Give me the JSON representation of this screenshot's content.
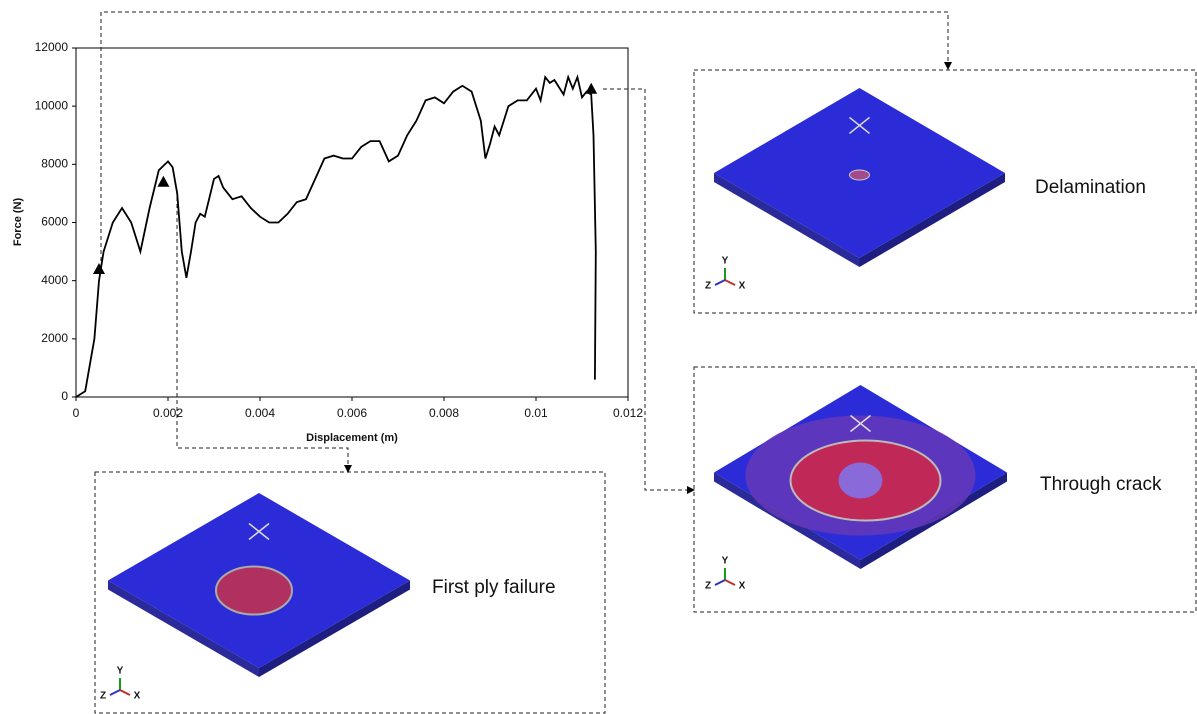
{
  "chart_data": {
    "type": "line",
    "x": [
      0,
      0.0002,
      0.0004,
      0.0005,
      0.0006,
      0.0008,
      0.001,
      0.0012,
      0.0014,
      0.0016,
      0.0018,
      0.002,
      0.0021,
      0.0022,
      0.0023,
      0.0024,
      0.0025,
      0.0026,
      0.0027,
      0.0028,
      0.003,
      0.0031,
      0.0032,
      0.0034,
      0.0036,
      0.0038,
      0.004,
      0.0042,
      0.0044,
      0.0046,
      0.0048,
      0.005,
      0.0052,
      0.0054,
      0.0056,
      0.0058,
      0.006,
      0.0062,
      0.0064,
      0.0066,
      0.0068,
      0.007,
      0.0072,
      0.0074,
      0.0076,
      0.0078,
      0.008,
      0.0082,
      0.0084,
      0.0086,
      0.0088,
      0.0089,
      0.009,
      0.0091,
      0.0092,
      0.0094,
      0.0096,
      0.0098,
      0.01,
      0.0101,
      0.0102,
      0.0103,
      0.0104,
      0.0106,
      0.0107,
      0.0108,
      0.0109,
      0.011,
      0.0111,
      0.0112,
      0.01125,
      0.0113,
      0.01128
    ],
    "series": [
      {
        "color": "#000000",
        "values": [
          0,
          200,
          2000,
          4000,
          5000,
          6000,
          6500,
          6000,
          5000,
          6500,
          7800,
          8100,
          7900,
          7000,
          5000,
          4100,
          5000,
          6000,
          6300,
          6200,
          7500,
          7600,
          7200,
          6800,
          6900,
          6500,
          6200,
          6000,
          6000,
          6300,
          6700,
          6800,
          7500,
          8200,
          8300,
          8200,
          8200,
          8600,
          8800,
          8800,
          8100,
          8300,
          9000,
          9500,
          10200,
          10300,
          10100,
          10500,
          10700,
          10500,
          9500,
          8200,
          8700,
          9300,
          9000,
          10000,
          10200,
          10200,
          10600,
          10200,
          11000,
          10800,
          10900,
          10400,
          11000,
          10600,
          11000,
          10300,
          10500,
          10400,
          9000,
          5000,
          600
        ]
      }
    ],
    "markers": {
      "x": [
        0.0005,
        0.0019,
        0.0112
      ],
      "y": [
        4400,
        7400,
        10600
      ]
    },
    "xlabel": "Displacement (m)",
    "ylabel": "Force (N)",
    "xlim": [
      0,
      0.012
    ],
    "ylim": [
      0,
      12000
    ],
    "xticks": [
      0,
      0.002,
      0.004,
      0.006,
      0.008,
      0.01,
      0.012
    ],
    "yticks": [
      0,
      2000,
      4000,
      6000,
      8000,
      10000,
      12000
    ],
    "panels": [
      {
        "label": "Delamination",
        "axes": [
          "Y",
          "Z",
          "X"
        ]
      },
      {
        "label": "Through crack",
        "axes": [
          "Y",
          "Z",
          "X"
        ]
      },
      {
        "label": "First ply failure",
        "axes": [
          "Y",
          "Z",
          "X"
        ]
      }
    ]
  }
}
